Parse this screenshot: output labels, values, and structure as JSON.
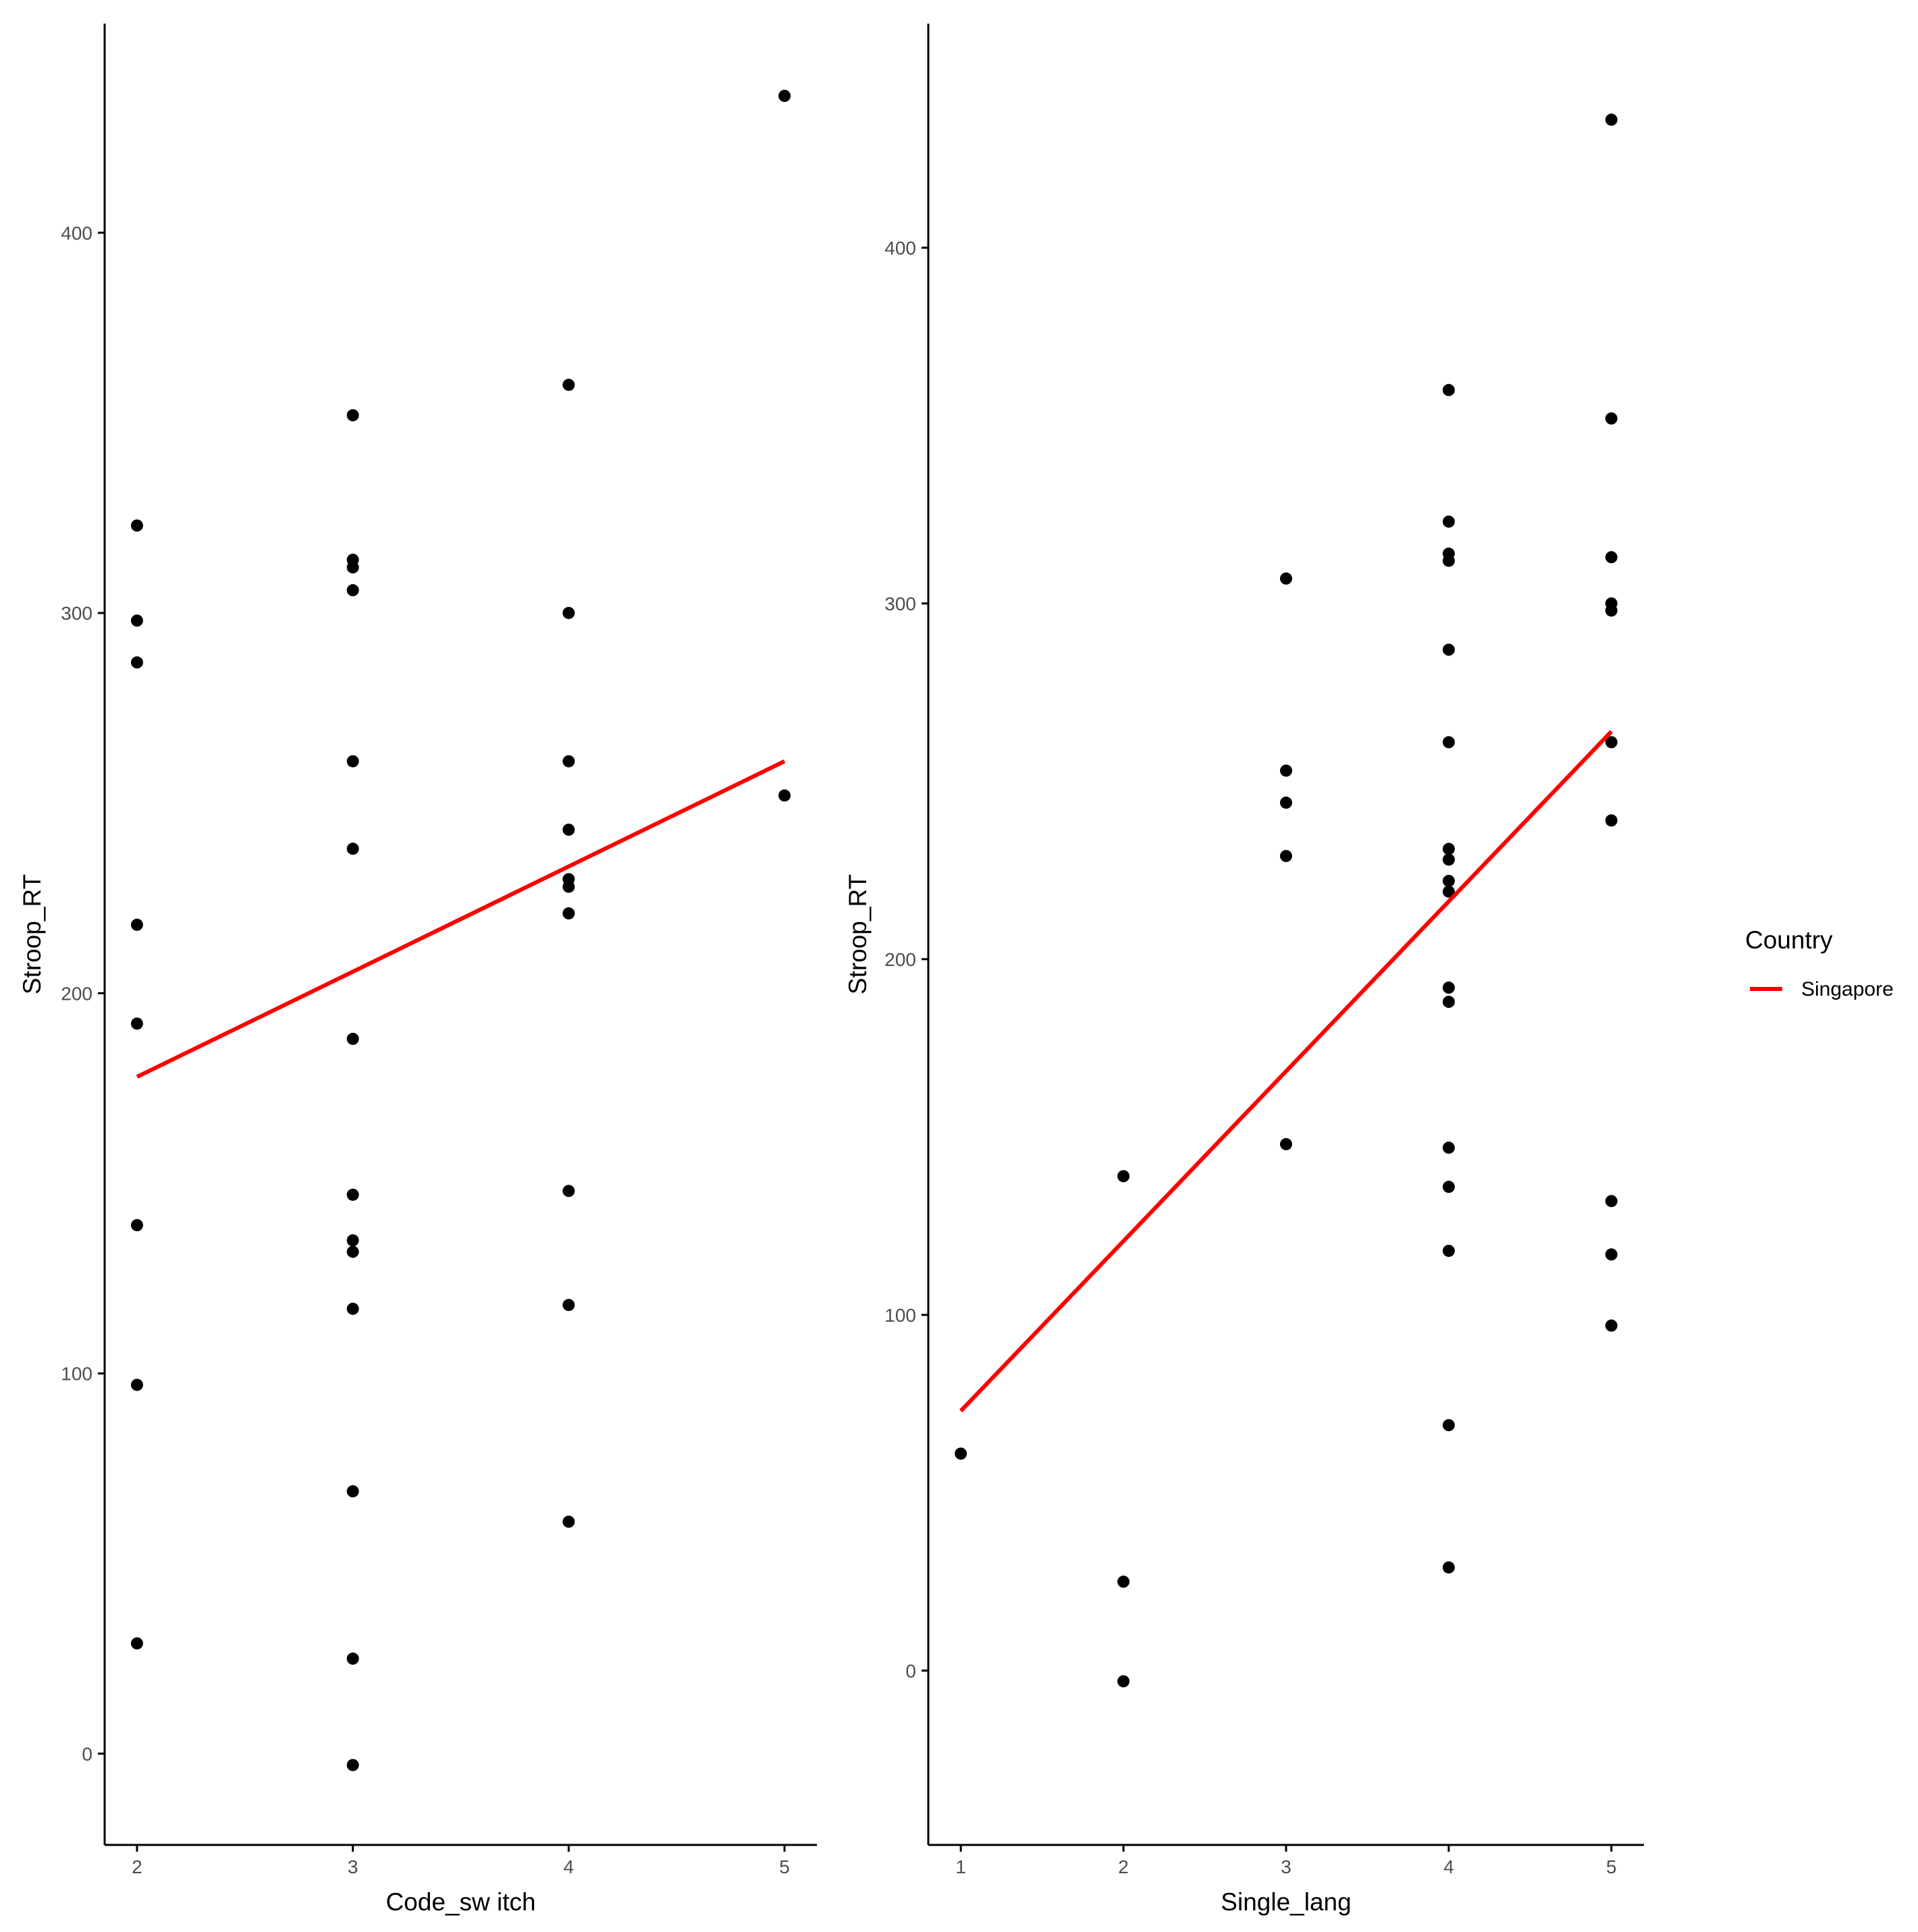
{
  "colors": {
    "point": "#000000",
    "fit_line": "#ff0000",
    "axis": "#000000",
    "tick_label": "#4d4d4d",
    "background": "#ffffff"
  },
  "legend": {
    "title": "Country",
    "items": [
      {
        "label": "Singapore",
        "color": "#ff0000"
      }
    ],
    "placement": "right"
  },
  "chart_data": [
    {
      "type": "scatter",
      "xlabel": "Code_sw itch",
      "ylabel": "Stroop_RT",
      "xlim": [
        1.85,
        5.15
      ],
      "ylim": [
        -24,
        455
      ],
      "x_ticks": [
        2,
        3,
        4,
        5
      ],
      "y_ticks": [
        0,
        100,
        200,
        300,
        400
      ],
      "grid": false,
      "points": [
        {
          "x": 2,
          "y": 323
        },
        {
          "x": 2,
          "y": 298
        },
        {
          "x": 2,
          "y": 287
        },
        {
          "x": 2,
          "y": 218
        },
        {
          "x": 2,
          "y": 192
        },
        {
          "x": 2,
          "y": 139
        },
        {
          "x": 2,
          "y": 97
        },
        {
          "x": 2,
          "y": 29
        },
        {
          "x": 3,
          "y": 352
        },
        {
          "x": 3,
          "y": 314
        },
        {
          "x": 3,
          "y": 312
        },
        {
          "x": 3,
          "y": 306
        },
        {
          "x": 3,
          "y": 261
        },
        {
          "x": 3,
          "y": 238
        },
        {
          "x": 3,
          "y": 188
        },
        {
          "x": 3,
          "y": 147
        },
        {
          "x": 3,
          "y": 135
        },
        {
          "x": 3,
          "y": 132
        },
        {
          "x": 3,
          "y": 117
        },
        {
          "x": 3,
          "y": 69
        },
        {
          "x": 3,
          "y": 25
        },
        {
          "x": 3,
          "y": -3
        },
        {
          "x": 4,
          "y": 360
        },
        {
          "x": 4,
          "y": 300
        },
        {
          "x": 4,
          "y": 261
        },
        {
          "x": 4,
          "y": 243
        },
        {
          "x": 4,
          "y": 230
        },
        {
          "x": 4,
          "y": 228
        },
        {
          "x": 4,
          "y": 221
        },
        {
          "x": 4,
          "y": 148
        },
        {
          "x": 4,
          "y": 118
        },
        {
          "x": 4,
          "y": 61
        },
        {
          "x": 5,
          "y": 436
        },
        {
          "x": 5,
          "y": 252
        }
      ],
      "fit_line": {
        "series": "Singapore",
        "x": [
          2,
          5
        ],
        "y": [
          178,
          261
        ]
      }
    },
    {
      "type": "scatter",
      "xlabel": "Single_lang",
      "ylabel": "Stroop_RT",
      "xlim": [
        0.8,
        5.2
      ],
      "ylim": [
        -49,
        463
      ],
      "x_ticks": [
        1,
        2,
        3,
        4,
        5
      ],
      "y_ticks": [
        0,
        100,
        200,
        300,
        400
      ],
      "grid": false,
      "points": [
        {
          "x": 1,
          "y": 61
        },
        {
          "x": 2,
          "y": 139
        },
        {
          "x": 2,
          "y": 25
        },
        {
          "x": 2,
          "y": -3
        },
        {
          "x": 3,
          "y": 307
        },
        {
          "x": 3,
          "y": 253
        },
        {
          "x": 3,
          "y": 244
        },
        {
          "x": 3,
          "y": 229
        },
        {
          "x": 3,
          "y": 148
        },
        {
          "x": 4,
          "y": 360
        },
        {
          "x": 4,
          "y": 323
        },
        {
          "x": 4,
          "y": 314
        },
        {
          "x": 4,
          "y": 312
        },
        {
          "x": 4,
          "y": 287
        },
        {
          "x": 4,
          "y": 261
        },
        {
          "x": 4,
          "y": 231
        },
        {
          "x": 4,
          "y": 228
        },
        {
          "x": 4,
          "y": 222
        },
        {
          "x": 4,
          "y": 219
        },
        {
          "x": 4,
          "y": 192
        },
        {
          "x": 4,
          "y": 188
        },
        {
          "x": 4,
          "y": 147
        },
        {
          "x": 4,
          "y": 136
        },
        {
          "x": 4,
          "y": 118
        },
        {
          "x": 4,
          "y": 69
        },
        {
          "x": 4,
          "y": 29
        },
        {
          "x": 5,
          "y": 436
        },
        {
          "x": 5,
          "y": 352
        },
        {
          "x": 5,
          "y": 313
        },
        {
          "x": 5,
          "y": 300
        },
        {
          "x": 5,
          "y": 298
        },
        {
          "x": 5,
          "y": 261
        },
        {
          "x": 5,
          "y": 239
        },
        {
          "x": 5,
          "y": 132
        },
        {
          "x": 5,
          "y": 117
        },
        {
          "x": 5,
          "y": 97
        }
      ],
      "fit_line": {
        "series": "Singapore",
        "x": [
          1,
          5
        ],
        "y": [
          73,
          264
        ]
      }
    }
  ]
}
